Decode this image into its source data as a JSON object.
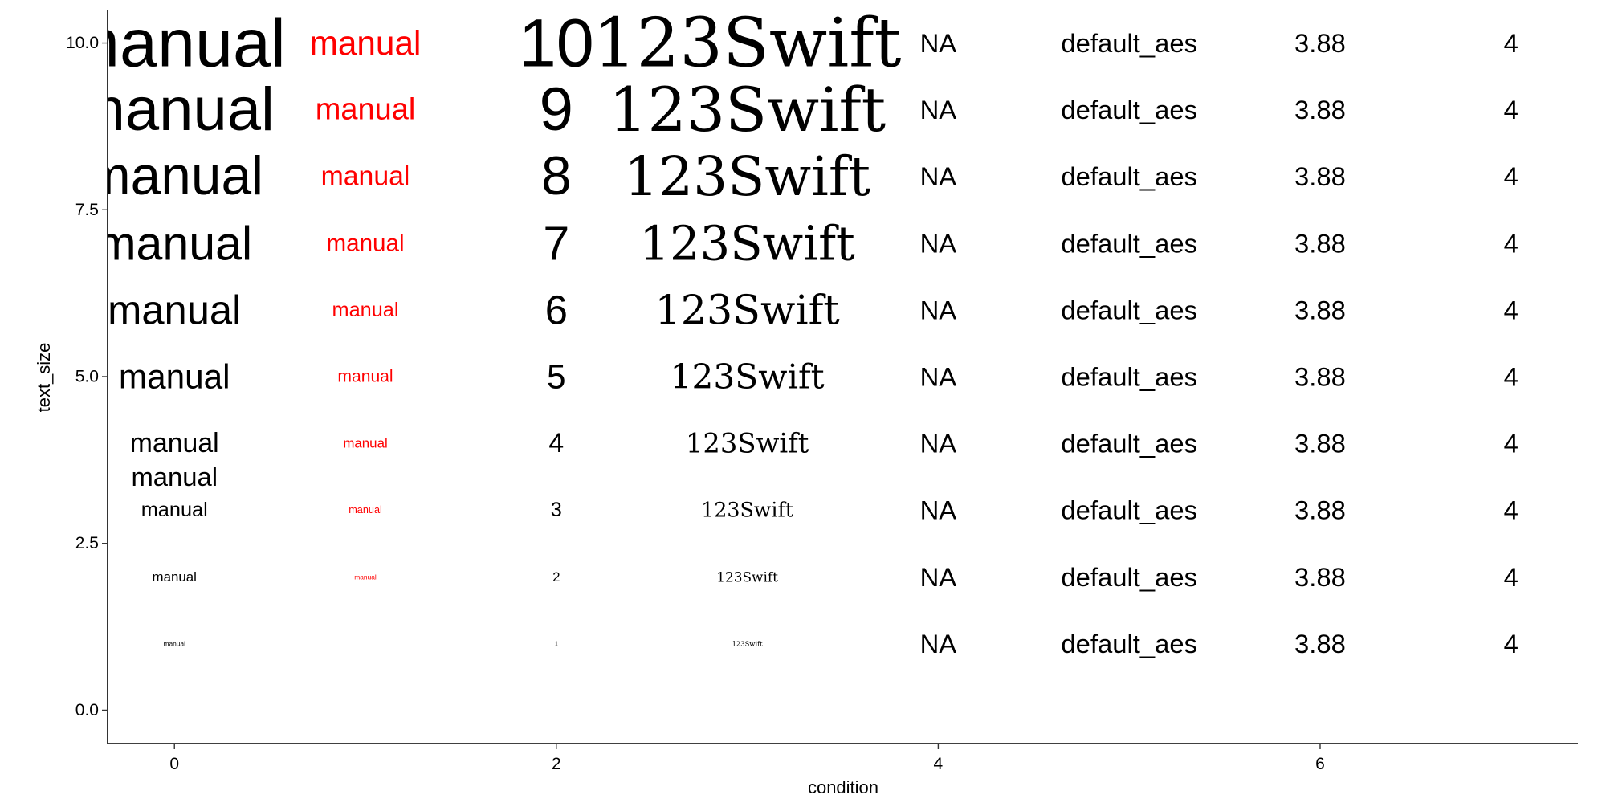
{
  "chart_data": {
    "type": "scatter",
    "geom": "text",
    "xlabel": "condition",
    "ylabel": "text_size",
    "xlim": [
      -0.35,
      7.35
    ],
    "ylim": [
      -0.5,
      10.5
    ],
    "x_ticks": [
      0,
      2,
      4,
      6
    ],
    "y_ticks": [
      0.0,
      2.5,
      5.0,
      7.5,
      10.0
    ],
    "x_tick_labels": [
      "0",
      "2",
      "4",
      "6"
    ],
    "y_tick_labels": [
      "0.0",
      "2.5",
      "5.0",
      "7.5",
      "10.0"
    ],
    "grid": false,
    "legend": "none",
    "text_color_default": "#000000",
    "text_color_accent": "#ff0000",
    "series": [
      {
        "x": 0,
        "color": "#000000",
        "font": "sans",
        "points": [
          {
            "y": 1,
            "label": "manual",
            "size": 1
          },
          {
            "y": 2,
            "label": "manual",
            "size": 2
          },
          {
            "y": 3,
            "label": "manual",
            "size": 3
          },
          {
            "y": 3.5,
            "label": "manual",
            "size": 3.88
          },
          {
            "y": 4,
            "label": "manual",
            "size": 4
          },
          {
            "y": 5,
            "label": "manual",
            "size": 5
          },
          {
            "y": 6,
            "label": "manual",
            "size": 6
          },
          {
            "y": 7,
            "label": "manual",
            "size": 7
          },
          {
            "y": 8,
            "label": "manual",
            "size": 8
          },
          {
            "y": 9,
            "label": "manual",
            "size": 9
          },
          {
            "y": 10,
            "label": "manual",
            "size": 10
          }
        ]
      },
      {
        "x": 1,
        "color": "#ff0000",
        "font": "sans",
        "points": [
          {
            "y": 2,
            "label": "manual",
            "size": 1
          },
          {
            "y": 3,
            "label": "manual",
            "size": 1.5
          },
          {
            "y": 4,
            "label": "manual",
            "size": 2
          },
          {
            "y": 5,
            "label": "manual",
            "size": 2.5
          },
          {
            "y": 6,
            "label": "manual",
            "size": 3
          },
          {
            "y": 7,
            "label": "manual",
            "size": 3.5
          },
          {
            "y": 8,
            "label": "manual",
            "size": 4
          },
          {
            "y": 9,
            "label": "manual",
            "size": 4.5
          },
          {
            "y": 10,
            "label": "manual",
            "size": 5
          }
        ]
      },
      {
        "x": 2,
        "color": "#000000",
        "font": "sans",
        "points": [
          {
            "y": 1,
            "label": "1",
            "size": 1
          },
          {
            "y": 2,
            "label": "2",
            "size": 2
          },
          {
            "y": 3,
            "label": "3",
            "size": 3
          },
          {
            "y": 4,
            "label": "4",
            "size": 4
          },
          {
            "y": 5,
            "label": "5",
            "size": 5
          },
          {
            "y": 6,
            "label": "6",
            "size": 6
          },
          {
            "y": 7,
            "label": "7",
            "size": 7
          },
          {
            "y": 8,
            "label": "8",
            "size": 8
          },
          {
            "y": 9,
            "label": "9",
            "size": 9
          },
          {
            "y": 10,
            "label": "10",
            "size": 10
          }
        ]
      },
      {
        "x": 3,
        "color": "#000000",
        "font": "serif",
        "points": [
          {
            "y": 1,
            "label": "123Swift",
            "size": 1
          },
          {
            "y": 2,
            "label": "123Swift",
            "size": 2
          },
          {
            "y": 3,
            "label": "123Swift",
            "size": 3
          },
          {
            "y": 4,
            "label": "123Swift",
            "size": 4
          },
          {
            "y": 5,
            "label": "123Swift",
            "size": 5
          },
          {
            "y": 6,
            "label": "123Swift",
            "size": 6
          },
          {
            "y": 7,
            "label": "123Swift",
            "size": 7
          },
          {
            "y": 8,
            "label": "123Swift",
            "size": 8
          },
          {
            "y": 9,
            "label": "123Swift",
            "size": 9
          },
          {
            "y": 10,
            "label": "123Swift",
            "size": 10
          }
        ]
      },
      {
        "x": 4,
        "color": "#000000",
        "font": "sans",
        "points": [
          {
            "y": 1,
            "label": "NA",
            "size": 3.88
          },
          {
            "y": 2,
            "label": "NA",
            "size": 3.88
          },
          {
            "y": 3,
            "label": "NA",
            "size": 3.88
          },
          {
            "y": 4,
            "label": "NA",
            "size": 3.88
          },
          {
            "y": 5,
            "label": "NA",
            "size": 3.88
          },
          {
            "y": 6,
            "label": "NA",
            "size": 3.88
          },
          {
            "y": 7,
            "label": "NA",
            "size": 3.88
          },
          {
            "y": 8,
            "label": "NA",
            "size": 3.88
          },
          {
            "y": 9,
            "label": "NA",
            "size": 3.88
          },
          {
            "y": 10,
            "label": "NA",
            "size": 3.88
          }
        ]
      },
      {
        "x": 5,
        "color": "#000000",
        "font": "sans",
        "points": [
          {
            "y": 1,
            "label": "default_aes",
            "size": 3.88
          },
          {
            "y": 2,
            "label": "default_aes",
            "size": 3.88
          },
          {
            "y": 3,
            "label": "default_aes",
            "size": 3.88
          },
          {
            "y": 4,
            "label": "default_aes",
            "size": 3.88
          },
          {
            "y": 5,
            "label": "default_aes",
            "size": 3.88
          },
          {
            "y": 6,
            "label": "default_aes",
            "size": 3.88
          },
          {
            "y": 7,
            "label": "default_aes",
            "size": 3.88
          },
          {
            "y": 8,
            "label": "default_aes",
            "size": 3.88
          },
          {
            "y": 9,
            "label": "default_aes",
            "size": 3.88
          },
          {
            "y": 10,
            "label": "default_aes",
            "size": 3.88
          }
        ]
      },
      {
        "x": 6,
        "color": "#000000",
        "font": "sans",
        "points": [
          {
            "y": 1,
            "label": "3.88",
            "size": 3.88
          },
          {
            "y": 2,
            "label": "3.88",
            "size": 3.88
          },
          {
            "y": 3,
            "label": "3.88",
            "size": 3.88
          },
          {
            "y": 4,
            "label": "3.88",
            "size": 3.88
          },
          {
            "y": 5,
            "label": "3.88",
            "size": 3.88
          },
          {
            "y": 6,
            "label": "3.88",
            "size": 3.88
          },
          {
            "y": 7,
            "label": "3.88",
            "size": 3.88
          },
          {
            "y": 8,
            "label": "3.88",
            "size": 3.88
          },
          {
            "y": 9,
            "label": "3.88",
            "size": 3.88
          },
          {
            "y": 10,
            "label": "3.88",
            "size": 3.88
          }
        ]
      },
      {
        "x": 7,
        "color": "#000000",
        "font": "sans",
        "points": [
          {
            "y": 1,
            "label": "4",
            "size": 3.88
          },
          {
            "y": 2,
            "label": "4",
            "size": 3.88
          },
          {
            "y": 3,
            "label": "4",
            "size": 3.88
          },
          {
            "y": 4,
            "label": "4",
            "size": 3.88
          },
          {
            "y": 5,
            "label": "4",
            "size": 3.88
          },
          {
            "y": 6,
            "label": "4",
            "size": 3.88
          },
          {
            "y": 7,
            "label": "4",
            "size": 3.88
          },
          {
            "y": 8,
            "label": "4",
            "size": 3.88
          },
          {
            "y": 9,
            "label": "4",
            "size": 3.88
          },
          {
            "y": 10,
            "label": "4",
            "size": 3.88
          }
        ]
      }
    ]
  }
}
